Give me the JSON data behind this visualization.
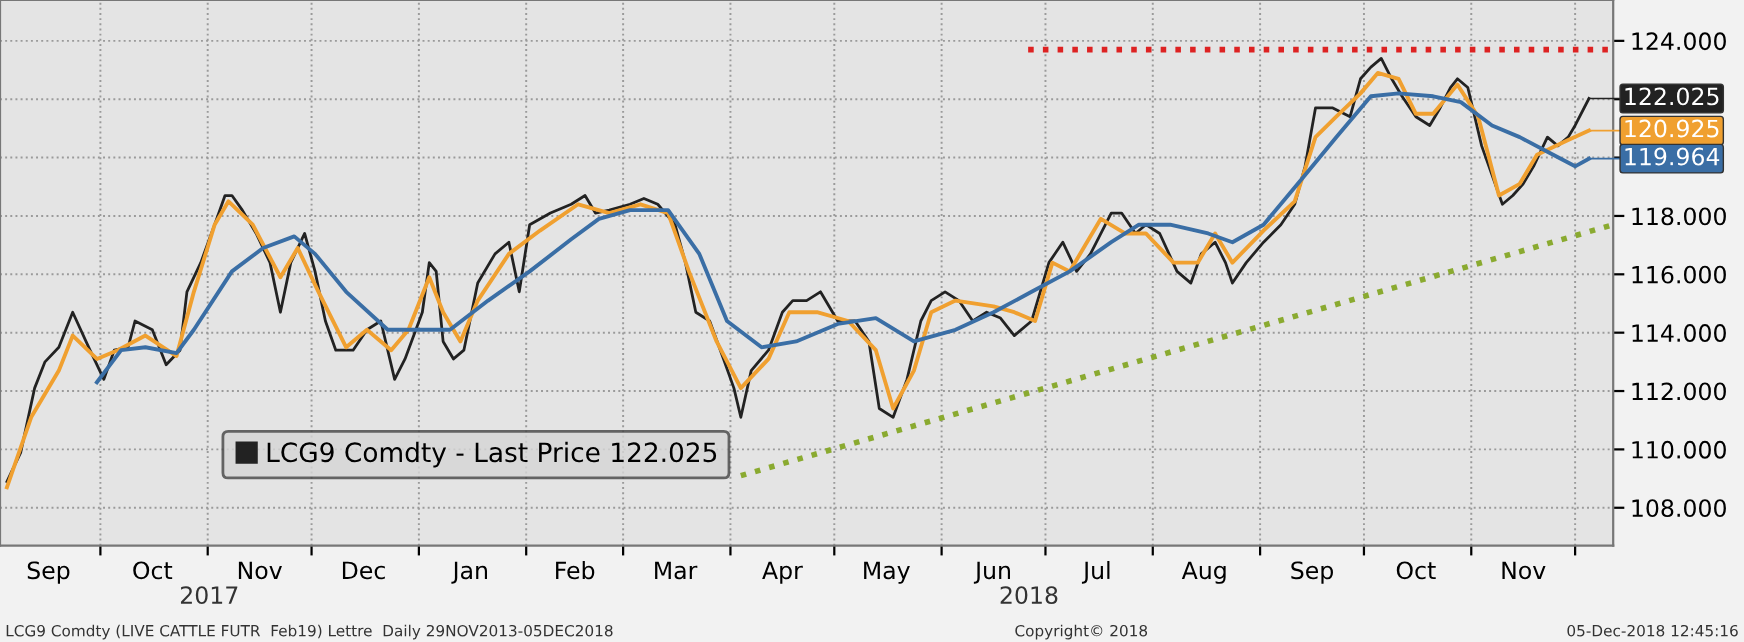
{
  "chart_data": {
    "type": "line",
    "xlim": [
      "2017-09-02",
      "2018-12-12"
    ],
    "ylim": [
      106.7,
      125.4
    ],
    "yticks": [
      {
        "value": 108,
        "label": "108.000"
      },
      {
        "value": 110,
        "label": "110.000"
      },
      {
        "value": 112,
        "label": "112.000"
      },
      {
        "value": 114,
        "label": "114.000"
      },
      {
        "value": 116,
        "label": "116.000"
      },
      {
        "value": 118,
        "label": "118.000"
      },
      {
        "value": 120,
        "label": null
      },
      {
        "value": 122,
        "label": null
      },
      {
        "value": 124,
        "label": "124.000"
      }
    ],
    "xticks": [
      {
        "value": "2017-09-16",
        "label": "Sep"
      },
      {
        "value": "2017-10-01",
        "label": null
      },
      {
        "value": "2017-10-16",
        "label": "Oct"
      },
      {
        "value": "2017-11-01",
        "label": null
      },
      {
        "value": "2017-11-16",
        "label": "Nov"
      },
      {
        "value": "2017-12-01",
        "label": null
      },
      {
        "value": "2017-12-16",
        "label": "Dec"
      },
      {
        "value": "2018-01-01",
        "label": null
      },
      {
        "value": "2018-01-16",
        "label": "Jan"
      },
      {
        "value": "2018-02-01",
        "label": null
      },
      {
        "value": "2018-02-15",
        "label": "Feb"
      },
      {
        "value": "2018-03-01",
        "label": null
      },
      {
        "value": "2018-03-16",
        "label": "Mar"
      },
      {
        "value": "2018-04-01",
        "label": null
      },
      {
        "value": "2018-04-16",
        "label": "Apr"
      },
      {
        "value": "2018-05-01",
        "label": null
      },
      {
        "value": "2018-05-16",
        "label": "May"
      },
      {
        "value": "2018-06-01",
        "label": null
      },
      {
        "value": "2018-06-16",
        "label": "Jun"
      },
      {
        "value": "2018-07-01",
        "label": null
      },
      {
        "value": "2018-07-16",
        "label": "Jul"
      },
      {
        "value": "2018-08-01",
        "label": null
      },
      {
        "value": "2018-08-16",
        "label": "Aug"
      },
      {
        "value": "2018-09-01",
        "label": null
      },
      {
        "value": "2018-09-16",
        "label": "Sep"
      },
      {
        "value": "2018-10-01",
        "label": null
      },
      {
        "value": "2018-10-16",
        "label": "Oct"
      },
      {
        "value": "2018-11-01",
        "label": null
      },
      {
        "value": "2018-11-16",
        "label": "Nov"
      },
      {
        "value": "2018-12-01",
        "label": null
      }
    ],
    "grid": true,
    "legend": "bottom left",
    "series": [
      {
        "name": "LCG9 Comdty - Last Price 122.025",
        "color": "#222222",
        "x": [
          "2017-09-04",
          "2017-09-08",
          "2017-09-12",
          "2017-09-15",
          "2017-09-19",
          "2017-09-23",
          "2017-09-28",
          "2017-10-02",
          "2017-10-05",
          "2017-10-09",
          "2017-10-11",
          "2017-10-16",
          "2017-10-20",
          "2017-10-24",
          "2017-10-26",
          "2017-10-30",
          "2017-11-03",
          "2017-11-06",
          "2017-11-08",
          "2017-11-11",
          "2017-11-15",
          "2017-11-19",
          "2017-11-22",
          "2017-11-25",
          "2017-11-29",
          "2017-12-02",
          "2017-12-05",
          "2017-12-08",
          "2017-12-13",
          "2017-12-17",
          "2017-12-21",
          "2017-12-25",
          "2017-12-28",
          "2018-01-02",
          "2018-01-04",
          "2018-01-06",
          "2018-01-08",
          "2018-01-11",
          "2018-01-14",
          "2018-01-18",
          "2018-01-23",
          "2018-01-27",
          "2018-01-30",
          "2018-02-02",
          "2018-02-08",
          "2018-02-14",
          "2018-02-18",
          "2018-02-21",
          "2018-02-25",
          "2018-03-03",
          "2018-03-07",
          "2018-03-11",
          "2018-03-16",
          "2018-03-19",
          "2018-03-22",
          "2018-03-26",
          "2018-03-30",
          "2018-04-02",
          "2018-04-04",
          "2018-04-07",
          "2018-04-12",
          "2018-04-16",
          "2018-04-19",
          "2018-04-23",
          "2018-04-27",
          "2018-05-02",
          "2018-05-07",
          "2018-05-11",
          "2018-05-14",
          "2018-05-18",
          "2018-05-22",
          "2018-05-26",
          "2018-05-29",
          "2018-06-02",
          "2018-06-06",
          "2018-06-10",
          "2018-06-14",
          "2018-06-18",
          "2018-06-22",
          "2018-06-27",
          "2018-07-02",
          "2018-07-06",
          "2018-07-10",
          "2018-07-14",
          "2018-07-20",
          "2018-07-23",
          "2018-07-27",
          "2018-07-30",
          "2018-08-03",
          "2018-08-08",
          "2018-08-12",
          "2018-08-15",
          "2018-08-19",
          "2018-08-22",
          "2018-08-24",
          "2018-08-28",
          "2018-09-02",
          "2018-09-07",
          "2018-09-11",
          "2018-09-14",
          "2018-09-17",
          "2018-09-22",
          "2018-09-27",
          "2018-09-30",
          "2018-10-03",
          "2018-10-06",
          "2018-10-09",
          "2018-10-12",
          "2018-10-16",
          "2018-10-20",
          "2018-10-23",
          "2018-10-26",
          "2018-10-28",
          "2018-10-31",
          "2018-11-04",
          "2018-11-07",
          "2018-11-10",
          "2018-11-13",
          "2018-11-16",
          "2018-11-19",
          "2018-11-23",
          "2018-11-26",
          "2018-11-29",
          "2018-12-01",
          "2018-12-05"
        ],
        "values": [
          108.9,
          109.9,
          112.1,
          113.0,
          113.5,
          114.7,
          113.4,
          112.4,
          113.4,
          113.5,
          114.4,
          114.1,
          112.9,
          113.4,
          115.4,
          116.4,
          117.7,
          118.7,
          118.7,
          118.2,
          117.4,
          116.4,
          114.7,
          116.4,
          117.4,
          116.1,
          114.4,
          113.4,
          113.4,
          114.1,
          114.4,
          112.4,
          113.1,
          114.7,
          116.4,
          116.1,
          113.7,
          113.1,
          113.4,
          115.7,
          116.7,
          117.1,
          115.4,
          117.7,
          118.1,
          118.4,
          118.7,
          118.1,
          118.2,
          118.4,
          118.6,
          118.4,
          117.7,
          116.4,
          114.7,
          114.4,
          113.1,
          112.1,
          111.1,
          112.7,
          113.4,
          114.7,
          115.1,
          115.1,
          115.4,
          114.4,
          114.4,
          113.7,
          111.4,
          111.1,
          112.4,
          114.4,
          115.1,
          115.4,
          115.1,
          114.4,
          114.7,
          114.5,
          113.9,
          114.4,
          116.4,
          117.1,
          116.1,
          116.7,
          118.1,
          118.1,
          117.4,
          117.7,
          117.4,
          116.1,
          115.7,
          116.7,
          117.1,
          116.4,
          115.7,
          116.4,
          117.1,
          117.7,
          118.4,
          119.7,
          121.7,
          121.7,
          121.4,
          122.7,
          123.1,
          123.4,
          122.7,
          122.1,
          121.4,
          121.1,
          121.7,
          122.4,
          122.7,
          122.4,
          120.4,
          119.4,
          118.4,
          118.7,
          119.1,
          119.7,
          120.7,
          120.4,
          120.7,
          121.1,
          122.025
        ]
      },
      {
        "color": "#f0a030",
        "x": [
          "2017-09-04",
          "2017-09-11",
          "2017-09-19",
          "2017-09-23",
          "2017-09-30",
          "2017-10-06",
          "2017-10-14",
          "2017-10-23",
          "2017-10-28",
          "2017-11-03",
          "2017-11-07",
          "2017-11-14",
          "2017-11-22",
          "2017-11-27",
          "2017-12-03",
          "2017-12-11",
          "2017-12-17",
          "2017-12-24",
          "2017-12-29",
          "2018-01-04",
          "2018-01-08",
          "2018-01-13",
          "2018-01-18",
          "2018-01-27",
          "2018-02-05",
          "2018-02-16",
          "2018-02-25",
          "2018-03-06",
          "2018-03-14",
          "2018-03-20",
          "2018-03-28",
          "2018-04-04",
          "2018-04-12",
          "2018-04-18",
          "2018-04-26",
          "2018-05-05",
          "2018-05-13",
          "2018-05-18",
          "2018-05-24",
          "2018-05-29",
          "2018-06-05",
          "2018-06-16",
          "2018-06-22",
          "2018-06-28",
          "2018-07-03",
          "2018-07-08",
          "2018-07-17",
          "2018-07-24",
          "2018-07-30",
          "2018-08-07",
          "2018-08-14",
          "2018-08-19",
          "2018-08-24",
          "2018-09-02",
          "2018-09-11",
          "2018-09-17",
          "2018-09-23",
          "2018-09-30",
          "2018-10-05",
          "2018-10-11",
          "2018-10-16",
          "2018-10-21",
          "2018-10-28",
          "2018-11-03",
          "2018-11-09",
          "2018-11-15",
          "2018-11-20",
          "2018-11-29",
          "2018-12-05"
        ],
        "values": [
          108.7,
          111.1,
          112.7,
          113.9,
          113.1,
          113.4,
          113.9,
          113.2,
          115.4,
          117.7,
          118.5,
          117.7,
          115.9,
          116.9,
          115.4,
          113.5,
          114.1,
          113.4,
          114.1,
          115.9,
          114.7,
          113.7,
          115.1,
          116.7,
          117.5,
          118.4,
          118.1,
          118.4,
          118.1,
          116.1,
          113.7,
          112.1,
          113.1,
          114.7,
          114.7,
          114.4,
          113.4,
          111.4,
          112.7,
          114.7,
          115.1,
          114.9,
          114.7,
          114.4,
          116.4,
          116.1,
          117.9,
          117.4,
          117.4,
          116.4,
          116.4,
          117.4,
          116.4,
          117.5,
          118.5,
          120.7,
          121.4,
          122.2,
          122.9,
          122.7,
          121.5,
          121.5,
          122.5,
          121.4,
          118.7,
          119.1,
          120.1,
          120.6,
          120.925
        ]
      },
      {
        "color": "#3a6ea5",
        "x": [
          "2017-09-30",
          "2017-10-07",
          "2017-10-14",
          "2017-10-23",
          "2017-10-28",
          "2017-11-08",
          "2017-11-17",
          "2017-11-26",
          "2017-12-02",
          "2017-12-11",
          "2017-12-23",
          "2018-01-02",
          "2018-01-10",
          "2018-01-21",
          "2018-02-02",
          "2018-02-14",
          "2018-02-22",
          "2018-03-03",
          "2018-03-14",
          "2018-03-23",
          "2018-03-31",
          "2018-04-10",
          "2018-04-20",
          "2018-05-02",
          "2018-05-13",
          "2018-05-24",
          "2018-06-05",
          "2018-06-16",
          "2018-06-27",
          "2018-07-08",
          "2018-07-20",
          "2018-07-28",
          "2018-08-06",
          "2018-08-17",
          "2018-08-24",
          "2018-09-02",
          "2018-09-14",
          "2018-09-23",
          "2018-10-03",
          "2018-10-11",
          "2018-10-21",
          "2018-10-29",
          "2018-11-07",
          "2018-11-15",
          "2018-11-23",
          "2018-12-01",
          "2018-12-05"
        ],
        "values": [
          112.3,
          113.4,
          113.5,
          113.3,
          114.1,
          116.1,
          116.9,
          117.3,
          116.7,
          115.4,
          114.1,
          114.1,
          114.1,
          115.1,
          116.1,
          117.2,
          117.9,
          118.2,
          118.2,
          116.7,
          114.4,
          113.5,
          113.7,
          114.3,
          114.5,
          113.7,
          114.1,
          114.7,
          115.4,
          116.1,
          117.1,
          117.7,
          117.7,
          117.4,
          117.1,
          117.7,
          119.4,
          120.7,
          122.1,
          122.2,
          122.1,
          121.9,
          121.1,
          120.7,
          120.2,
          119.7,
          119.964
        ]
      },
      {
        "color": "#dd2222",
        "line_style": "dotted",
        "x": [
          "2018-06-26",
          "2018-12-12"
        ],
        "values": [
          123.7,
          123.7
        ]
      },
      {
        "color": "#8aaa30",
        "line_style": "dotted",
        "x": [
          "2018-04-04",
          "2018-12-12"
        ],
        "values": [
          109.1,
          117.7
        ]
      }
    ],
    "annotations": [
      {
        "text": "122.025",
        "x": "2018-12-05",
        "y": 122.025
      },
      {
        "text": "120.925",
        "x": "2018-12-05",
        "y": 120.925
      },
      {
        "text": "119.964",
        "x": "2018-12-05",
        "y": 119.964
      },
      "2017",
      "2018",
      "LCG9 Comdty (LIVE CATTLE FUTR  Feb19) Lettre  Daily 29NOV2013-05DEC2018",
      "Copyright© 2018",
      "05-Dec-2018 12:45:16"
    ]
  }
}
